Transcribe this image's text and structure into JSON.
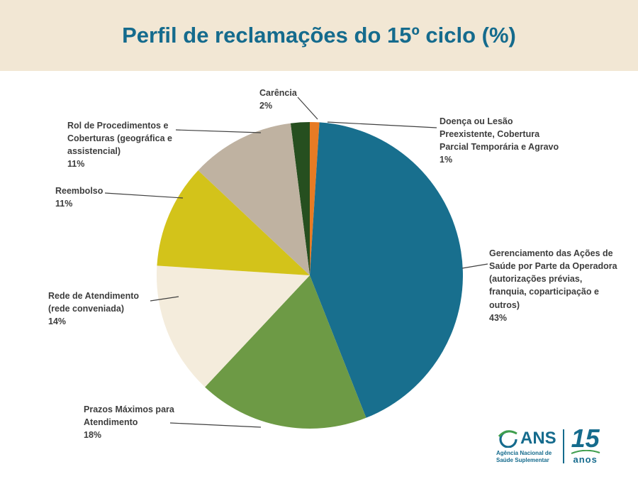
{
  "header": {
    "title": "Perfil de reclamações do 15º ciclo (%)"
  },
  "chart_data": {
    "type": "pie",
    "title": "Perfil de reclamações do 15º ciclo (%)",
    "unit": "%",
    "layout": {
      "start_angle_deg": -7.2,
      "legend": "none",
      "label_style": "callout-with-leader-lines",
      "order": "clockwise-from-top"
    },
    "slices": [
      {
        "label": "Carência",
        "value": 2,
        "pct_label": "2%",
        "color": "#264f1f"
      },
      {
        "label": "Doença ou Lesão Preexistente, Cobertura Parcial Temporária e Agravo",
        "value": 1,
        "pct_label": "1%",
        "color": "#e77b24"
      },
      {
        "label": "Gerenciamento das Ações de Saúde por Parte da Operadora (autorizações prévias, franquia, coparticipação e outros)",
        "value": 43,
        "pct_label": "43%",
        "color": "#186f8e"
      },
      {
        "label": "Prazos Máximos para Atendimento",
        "value": 18,
        "pct_label": "18%",
        "color": "#6d9a45"
      },
      {
        "label": "Rede de Atendimento (rede conveniada)",
        "value": 14,
        "pct_label": "14%",
        "color": "#f4ecdc"
      },
      {
        "label": "Reembolso",
        "value": 11,
        "pct_label": "11%",
        "color": "#d3c31a"
      },
      {
        "label": "Rol de Procedimentos e Coberturas (geográfica e assistencial)",
        "value": 11,
        "pct_label": "11%",
        "color": "#bfb2a1"
      }
    ],
    "colors": {
      "accent_teal": "#156b8d",
      "header_band": "#f2e7d4",
      "label_text": "#3d3d3d"
    }
  },
  "logo": {
    "brand": "ANS",
    "subtitle_line1": "Agência Nacional de",
    "subtitle_line2": "Saúde Suplementar",
    "anniversary_number": "15",
    "anniversary_word": "anos"
  }
}
